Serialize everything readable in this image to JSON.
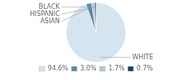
{
  "chart_data": {
    "type": "pie",
    "categories": [
      "WHITE",
      "ASIAN",
      "HISPANIC",
      "BLACK"
    ],
    "values": [
      94.6,
      3.0,
      1.7,
      0.7
    ],
    "value_labels": [
      "94.6%",
      "3.0%",
      "1.7%",
      "0.7%"
    ],
    "colors": [
      "#d6e4ef",
      "#5b86a5",
      "#b0c8d8",
      "#1f3f5a"
    ],
    "legend": "bottom"
  }
}
